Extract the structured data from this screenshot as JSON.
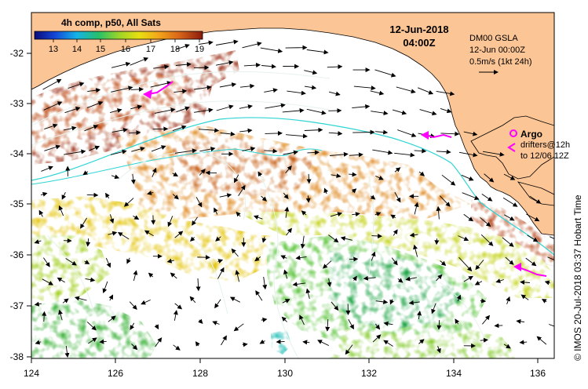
{
  "colorbar": {
    "title": "4h comp, p50, All Sats",
    "ticks": [
      "13",
      "14",
      "15",
      "16",
      "17",
      "18",
      "19"
    ]
  },
  "timestamp": {
    "date": "12-Jun-2018",
    "time": "04:00Z"
  },
  "legend": {
    "product": "DM00 GSLA",
    "product_time": "12-Jun 00:00Z",
    "scale_label": "0.5m/s (1kt 24h)",
    "argo_label": "Argo",
    "drifters_label": "drifters@12h",
    "drifters_range": "to 12/06 12Z"
  },
  "credit": "© IMOS 20-Jul-2018 03:37 Hobart Time",
  "axes": {
    "lat_ticks": [
      "-32",
      "-33",
      "-34",
      "-35",
      "-36",
      "-37",
      "-38"
    ],
    "lon_ticks": [
      "124",
      "126",
      "128",
      "130",
      "132",
      "134",
      "136"
    ]
  },
  "colors": {
    "land": "#fcc595",
    "ocean_nodata": "#ffffff",
    "contour": "#e6f2ec",
    "shelf_line": "#2ed4d4",
    "argo": "#ff00ff",
    "drifter": "#ff00ff"
  }
}
